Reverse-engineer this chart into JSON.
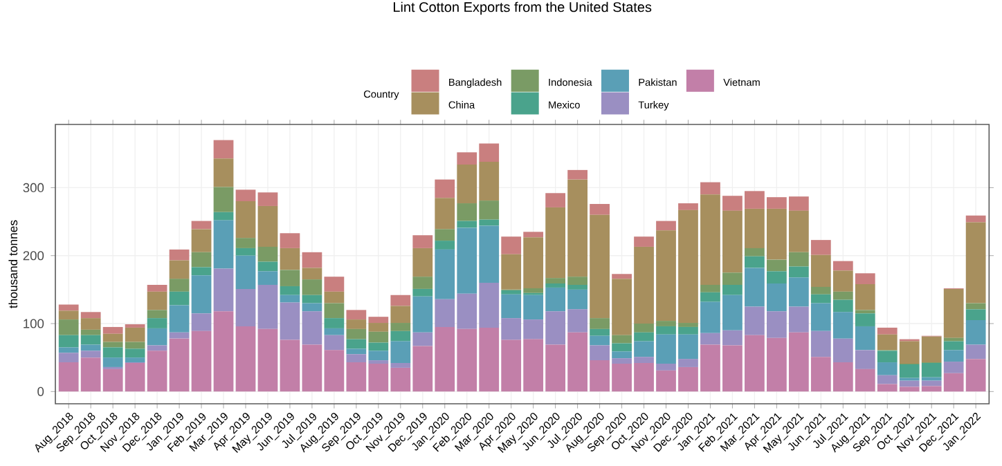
{
  "chart_data": {
    "type": "bar",
    "title": "Lint Cotton Exports from the United States",
    "ylabel": "thousand tonnes",
    "legend_title": "Country",
    "categories": [
      "Aug_2018",
      "Sep_2018",
      "Oct_2018",
      "Nov_2018",
      "Dec_2018",
      "Jan_2019",
      "Feb_2019",
      "Mar_2019",
      "Apr_2019",
      "May_2019",
      "Jun_2019",
      "Jul_2019",
      "Aug_2019",
      "Sep_2019",
      "Oct_2019",
      "Nov_2019",
      "Dec_2019",
      "Jan_2020",
      "Feb_2020",
      "Mar_2020",
      "Apr_2020",
      "May_2020",
      "Jun_2020",
      "Jul_2020",
      "Aug_2020",
      "Sep_2020",
      "Oct_2020",
      "Nov_2020",
      "Dec_2020",
      "Jan_2021",
      "Feb_2021",
      "Mar_2021",
      "Apr_2021",
      "May_2021",
      "Jun_2021",
      "Jul_2021",
      "Aug_2021",
      "Sep_2021",
      "Oct_2021",
      "Nov_2021",
      "Dec_2021",
      "Jan_2022"
    ],
    "stacked": true,
    "grid": true,
    "legend": "top",
    "ylim": [
      -18,
      393
    ],
    "yticks": [
      0,
      100,
      200,
      300
    ],
    "series": [
      {
        "name": "Vietnam",
        "color": "#c27fa8",
        "values": [
          43,
          50,
          33,
          42,
          60,
          78,
          89,
          118,
          96,
          92,
          76,
          69,
          61,
          43,
          41,
          35,
          67,
          95,
          92,
          94,
          76,
          77,
          69,
          87,
          46,
          41,
          42,
          31,
          36,
          69,
          68,
          83,
          79,
          87,
          51,
          43,
          33,
          11,
          7,
          8,
          27,
          48
        ]
      },
      {
        "name": "Turkey",
        "color": "#9a8fc2",
        "values": [
          14,
          10,
          3,
          1,
          8,
          9,
          26,
          63,
          55,
          65,
          55,
          49,
          22,
          12,
          5,
          7,
          20,
          41,
          52,
          66,
          32,
          29,
          49,
          34,
          22,
          8,
          9,
          10,
          12,
          17,
          22,
          42,
          39,
          38,
          38,
          35,
          28,
          13,
          9,
          8,
          17,
          21
        ]
      },
      {
        "name": "Pakistan",
        "color": "#5a9fb6",
        "values": [
          8,
          9,
          14,
          7,
          25,
          40,
          56,
          71,
          49,
          20,
          11,
          12,
          10,
          8,
          14,
          32,
          53,
          73,
          97,
          84,
          35,
          36,
          35,
          29,
          14,
          10,
          23,
          43,
          36,
          46,
          52,
          57,
          41,
          43,
          41,
          39,
          35,
          19,
          4,
          5,
          17,
          36
        ]
      },
      {
        "name": "Mexico",
        "color": "#4aa38c",
        "values": [
          18,
          14,
          15,
          13,
          15,
          20,
          12,
          12,
          11,
          14,
          13,
          12,
          15,
          14,
          12,
          15,
          11,
          13,
          10,
          9,
          6,
          3,
          6,
          7,
          10,
          12,
          13,
          12,
          11,
          14,
          15,
          17,
          18,
          16,
          13,
          18,
          19,
          17,
          20,
          21,
          13,
          16
        ]
      },
      {
        "name": "Indonesia",
        "color": "#7a9b65",
        "values": [
          23,
          8,
          8,
          10,
          12,
          19,
          22,
          37,
          15,
          22,
          24,
          23,
          22,
          15,
          16,
          12,
          18,
          17,
          26,
          28,
          1,
          7,
          8,
          12,
          16,
          12,
          13,
          8,
          6,
          11,
          18,
          12,
          17,
          21,
          11,
          12,
          5,
          1,
          1,
          1,
          5,
          9
        ]
      },
      {
        "name": "China",
        "color": "#a78f5e",
        "values": [
          13,
          17,
          12,
          21,
          27,
          27,
          34,
          42,
          54,
          60,
          32,
          17,
          17,
          14,
          13,
          25,
          42,
          46,
          57,
          57,
          52,
          75,
          104,
          143,
          152,
          83,
          113,
          133,
          166,
          133,
          91,
          58,
          75,
          61,
          47,
          31,
          38,
          23,
          33,
          38,
          72,
          119
        ]
      },
      {
        "name": "Bangladesh",
        "color": "#c97f7f",
        "values": [
          9,
          9,
          10,
          5,
          10,
          16,
          12,
          27,
          17,
          20,
          22,
          23,
          22,
          14,
          9,
          16,
          19,
          27,
          18,
          27,
          26,
          8,
          21,
          14,
          16,
          7,
          15,
          14,
          10,
          18,
          22,
          26,
          17,
          21,
          22,
          14,
          16,
          10,
          3,
          1,
          1,
          10
        ]
      }
    ]
  }
}
